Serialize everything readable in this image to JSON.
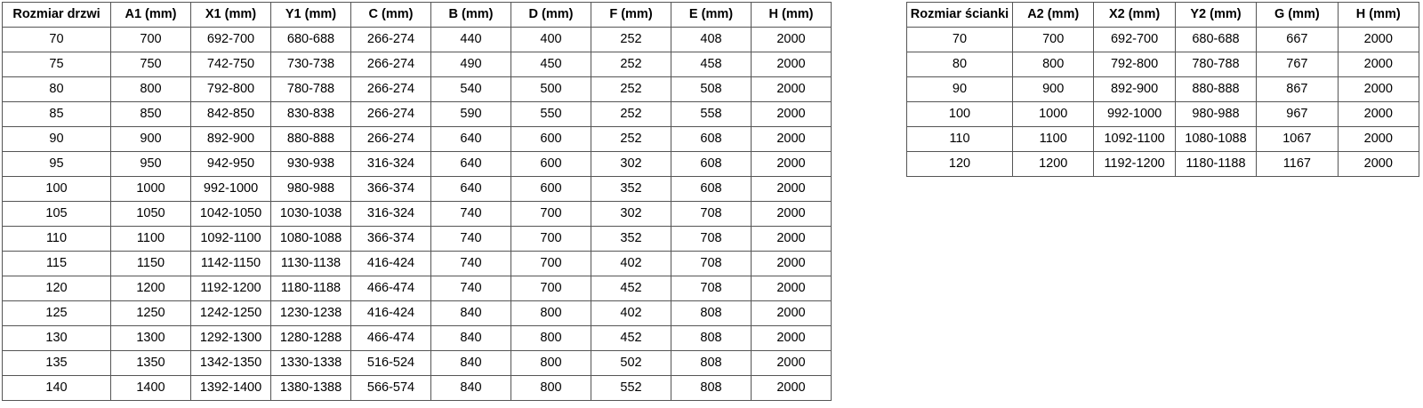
{
  "page": {
    "background": "#ffffff",
    "text_color": "#000000",
    "border_color": "#555555"
  },
  "tables": [
    {
      "title": "Rozmiar drzwi",
      "headers": [
        "Rozmiar drzwi",
        "A1 (mm)",
        "X1 (mm)",
        "Y1 (mm)",
        "C (mm)",
        "B (mm)",
        "D (mm)",
        "F (mm)",
        "E (mm)",
        "H (mm)"
      ],
      "rows": [
        [
          "70",
          "700",
          "692-700",
          "680-688",
          "266-274",
          "440",
          "400",
          "252",
          "408",
          "2000"
        ],
        [
          "75",
          "750",
          "742-750",
          "730-738",
          "266-274",
          "490",
          "450",
          "252",
          "458",
          "2000"
        ],
        [
          "80",
          "800",
          "792-800",
          "780-788",
          "266-274",
          "540",
          "500",
          "252",
          "508",
          "2000"
        ],
        [
          "85",
          "850",
          "842-850",
          "830-838",
          "266-274",
          "590",
          "550",
          "252",
          "558",
          "2000"
        ],
        [
          "90",
          "900",
          "892-900",
          "880-888",
          "266-274",
          "640",
          "600",
          "252",
          "608",
          "2000"
        ],
        [
          "95",
          "950",
          "942-950",
          "930-938",
          "316-324",
          "640",
          "600",
          "302",
          "608",
          "2000"
        ],
        [
          "100",
          "1000",
          "992-1000",
          "980-988",
          "366-374",
          "640",
          "600",
          "352",
          "608",
          "2000"
        ],
        [
          "105",
          "1050",
          "1042-1050",
          "1030-1038",
          "316-324",
          "740",
          "700",
          "302",
          "708",
          "2000"
        ],
        [
          "110",
          "1100",
          "1092-1100",
          "1080-1088",
          "366-374",
          "740",
          "700",
          "352",
          "708",
          "2000"
        ],
        [
          "115",
          "1150",
          "1142-1150",
          "1130-1138",
          "416-424",
          "740",
          "700",
          "402",
          "708",
          "2000"
        ],
        [
          "120",
          "1200",
          "1192-1200",
          "1180-1188",
          "466-474",
          "740",
          "700",
          "452",
          "708",
          "2000"
        ],
        [
          "125",
          "1250",
          "1242-1250",
          "1230-1238",
          "416-424",
          "840",
          "800",
          "402",
          "808",
          "2000"
        ],
        [
          "130",
          "1300",
          "1292-1300",
          "1280-1288",
          "466-474",
          "840",
          "800",
          "452",
          "808",
          "2000"
        ],
        [
          "135",
          "1350",
          "1342-1350",
          "1330-1338",
          "516-524",
          "840",
          "800",
          "502",
          "808",
          "2000"
        ],
        [
          "140",
          "1400",
          "1392-1400",
          "1380-1388",
          "566-574",
          "840",
          "800",
          "552",
          "808",
          "2000"
        ]
      ]
    },
    {
      "title": "Rozmiar ścianki",
      "headers": [
        "Rozmiar ścianki",
        "A2 (mm)",
        "X2 (mm)",
        "Y2 (mm)",
        "G (mm)",
        "H (mm)"
      ],
      "rows": [
        [
          "70",
          "700",
          "692-700",
          "680-688",
          "667",
          "2000"
        ],
        [
          "80",
          "800",
          "792-800",
          "780-788",
          "767",
          "2000"
        ],
        [
          "90",
          "900",
          "892-900",
          "880-888",
          "867",
          "2000"
        ],
        [
          "100",
          "1000",
          "992-1000",
          "980-988",
          "967",
          "2000"
        ],
        [
          "110",
          "1100",
          "1092-1100",
          "1080-1088",
          "1067",
          "2000"
        ],
        [
          "120",
          "1200",
          "1192-1200",
          "1180-1188",
          "1167",
          "2000"
        ]
      ]
    }
  ]
}
